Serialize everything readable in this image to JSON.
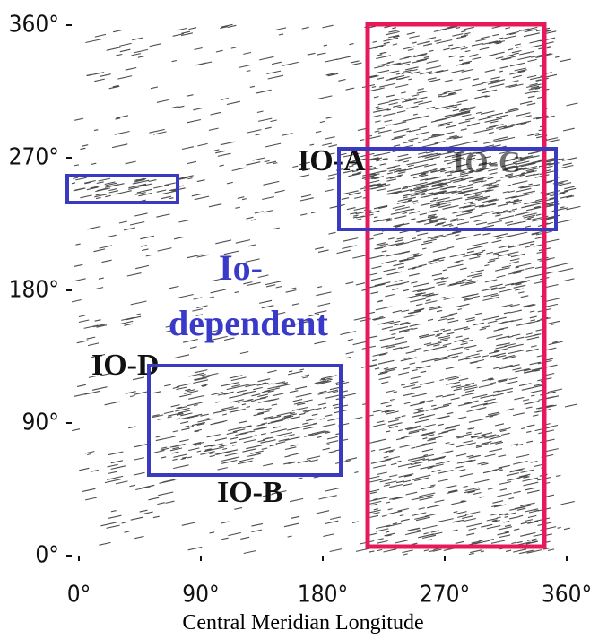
{
  "chart_data": {
    "type": "density",
    "xlabel": "Central Meridian Longitude",
    "xlim": [
      0,
      360
    ],
    "ylim": [
      0,
      360
    ],
    "xticks": [
      {
        "value": 0,
        "label": "0°"
      },
      {
        "value": 90,
        "label": "90°"
      },
      {
        "value": 180,
        "label": "180°"
      },
      {
        "value": 270,
        "label": "270°"
      },
      {
        "value": 360,
        "label": "360°"
      }
    ],
    "yticks": [
      {
        "value": 0,
        "label": "0°"
      },
      {
        "value": 90,
        "label": "90°"
      },
      {
        "value": 180,
        "label": "180°"
      },
      {
        "value": 270,
        "label": "270°"
      },
      {
        "value": 360,
        "label": "360°"
      }
    ],
    "annotations": [
      "IO-A",
      "IO-C",
      "IO-D",
      "IO-B",
      "Io-",
      "dependent"
    ]
  }
}
